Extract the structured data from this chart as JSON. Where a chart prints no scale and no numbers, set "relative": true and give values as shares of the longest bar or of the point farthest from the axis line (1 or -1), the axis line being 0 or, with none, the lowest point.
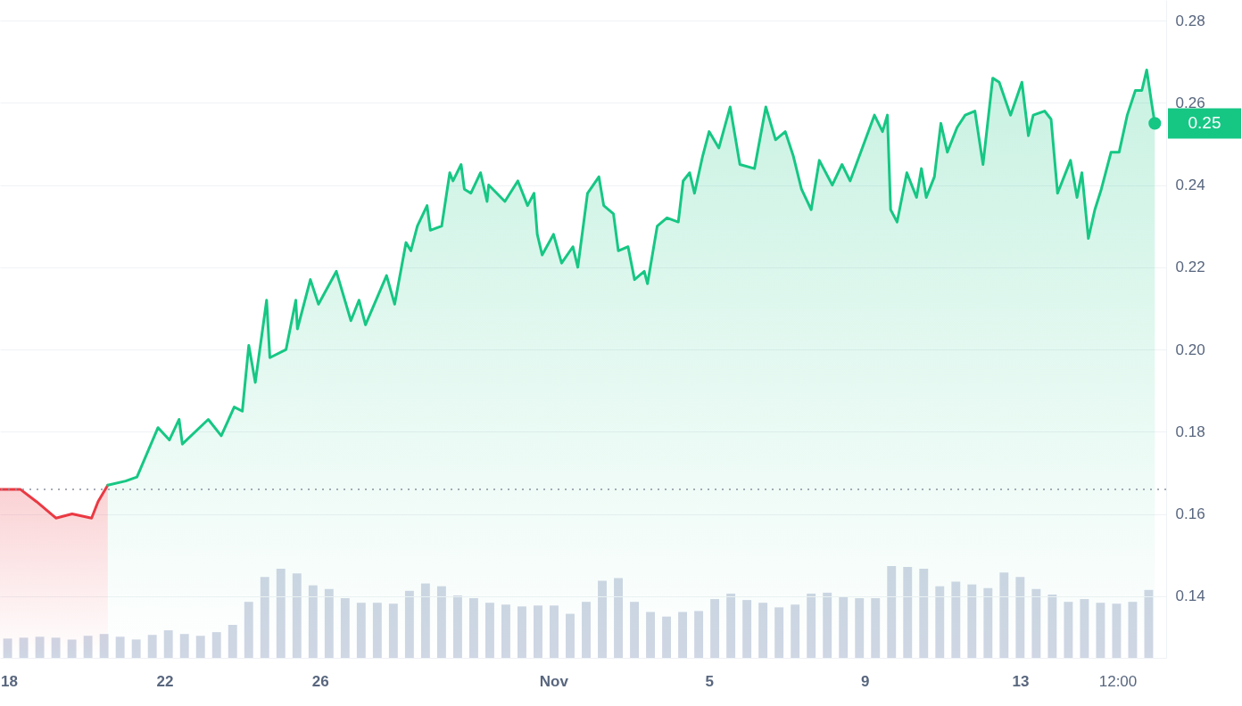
{
  "chart_data": [
    {
      "type": "area",
      "grid": "y",
      "xlim": [
        "--10-17T18:30",
        "--11-16T18:00"
      ],
      "xticks": [
        {
          "value": "--10-18",
          "label": "18"
        },
        {
          "value": "--10-22",
          "label": "22"
        },
        {
          "value": "--10-26",
          "label": "26"
        },
        {
          "value": "--11-01",
          "label": "Nov"
        },
        {
          "value": "--11-05",
          "label": "5"
        },
        {
          "value": "--11-09",
          "label": "9"
        },
        {
          "value": "--11-13",
          "label": "13"
        },
        {
          "value": "--11-15T12:00",
          "label": "12:00"
        }
      ],
      "ylim": [
        0.125,
        0.285
      ],
      "yticks": [
        0.14,
        0.16,
        0.18,
        {
          "value": 0.2,
          "label": "0.20"
        },
        0.22,
        0.24,
        0.26,
        0.28
      ],
      "ref_lines": [
        {
          "axis": "y",
          "value": 0.166,
          "color": "#8a919e",
          "line_style": "dotted"
        }
      ],
      "annotations": [
        {
          "text": "0.25",
          "x": "--11-16T11:00",
          "y": 0.255
        }
      ],
      "series": [
        {
          "type": "area",
          "color": "#ea3943",
          "x": [
            "--10-17T18:30",
            "--10-18T07:00",
            "--10-18T17:00",
            "--10-19T05:00",
            "--10-19T15:00",
            "--10-20T03:00",
            "--10-20T07:00",
            "--10-20T13:00"
          ],
          "values": [
            0.166,
            0.166,
            0.163,
            0.159,
            0.16,
            0.159,
            0.163,
            0.167
          ]
        },
        {
          "type": "area",
          "color": "#16c784",
          "x": [
            "--10-20T13:00",
            "--10-21T00:00",
            "--10-21T07:00",
            "--10-21T20:00",
            "--10-22T03:00",
            "--10-22T09:00",
            "--10-22T11:00",
            "--10-23T03:00",
            "--10-23T11:00",
            "--10-23T19:00",
            "--10-24T00:00",
            "--10-24T04:00",
            "--10-24T08:00",
            "--10-24T15:00",
            "--10-24T17:00",
            "--10-25T03:00",
            "--10-25T09:00",
            "--10-25T10:00",
            "--10-25T18:00",
            "--10-25T23:00",
            "--10-26T10:00",
            "--10-26T19:00",
            "--10-27T00:00",
            "--10-27T04:00",
            "--10-27T17:00",
            "--10-27T22:00",
            "--10-28T05:00",
            "--10-28T08:00",
            "--10-28T12:00",
            "--10-28T18:00",
            "--10-28T20:00",
            "--10-29T03:00",
            "--10-29T08:00",
            "--10-29T10:00",
            "--10-29T15:00",
            "--10-29T17:00",
            "--10-29T21:00",
            "--10-30T03:00",
            "--10-30T07:00",
            "--10-30T08:00",
            "--10-30T18:00",
            "--10-31T02:00",
            "--10-31T08:00",
            "--10-31T12:00",
            "--10-31T14:00",
            "--10-31T17:00",
            "--11-01T00:00",
            "--11-01T05:00",
            "--11-01T12:00",
            "--11-01T15:00",
            "--11-01T21:00",
            "--11-02T04:00",
            "--11-02T07:00",
            "--11-02T13:00",
            "--11-02T16:00",
            "--11-02T22:00",
            "--11-03T02:00",
            "--11-03T08:00",
            "--11-03T10:00",
            "--11-03T16:00",
            "--11-03T22:00",
            "--11-04T05:00",
            "--11-04T08:00",
            "--11-04T12:00",
            "--11-04T15:00",
            "--11-04T20:00",
            "--11-05T00:00",
            "--11-05T06:00",
            "--11-05T13:00",
            "--11-05T19:00",
            "--11-06T04:00",
            "--11-06T11:00",
            "--11-06T17:00",
            "--11-06T23:00",
            "--11-07T04:00",
            "--11-07T09:00",
            "--11-07T15:00",
            "--11-07T20:00",
            "--11-08T04:00",
            "--11-08T10:00",
            "--11-08T15:00",
            "--11-09T06:00",
            "--11-09T11:00",
            "--11-09T14:00",
            "--11-09T16:00",
            "--11-09T20:00",
            "--11-10T02:00",
            "--11-10T08:00",
            "--11-10T11:00",
            "--11-10T14:00",
            "--11-10T19:00",
            "--11-10T23:00",
            "--11-11T03:00",
            "--11-11T09:00",
            "--11-11T14:00",
            "--11-11T20:00",
            "--11-12T01:00",
            "--11-12T07:00",
            "--11-12T11:00",
            "--11-12T18:00",
            "--11-13T01:00",
            "--11-13T05:00",
            "--11-13T08:00",
            "--11-13T15:00",
            "--11-13T19:00",
            "--11-13T23:00",
            "--11-14T07:00",
            "--11-14T11:00",
            "--11-14T14:00",
            "--11-14T18:00",
            "--11-14T22:00",
            "--11-15T02:00",
            "--11-15T08:00",
            "--11-15T13:00",
            "--11-15T18:00",
            "--11-15T23:00",
            "--11-16T03:00",
            "--11-16T06:00",
            "--11-16T09:00",
            "--11-16T11:00"
          ],
          "values": [
            0.167,
            0.168,
            0.169,
            0.181,
            0.178,
            0.183,
            0.177,
            0.183,
            0.179,
            0.186,
            0.185,
            0.201,
            0.192,
            0.212,
            0.198,
            0.2,
            0.212,
            0.205,
            0.217,
            0.211,
            0.219,
            0.207,
            0.212,
            0.206,
            0.218,
            0.211,
            0.226,
            0.224,
            0.23,
            0.235,
            0.229,
            0.23,
            0.243,
            0.241,
            0.245,
            0.239,
            0.238,
            0.243,
            0.236,
            0.24,
            0.236,
            0.241,
            0.235,
            0.238,
            0.228,
            0.223,
            0.228,
            0.221,
            0.225,
            0.22,
            0.238,
            0.242,
            0.235,
            0.233,
            0.224,
            0.225,
            0.217,
            0.219,
            0.216,
            0.23,
            0.232,
            0.231,
            0.241,
            0.243,
            0.238,
            0.247,
            0.253,
            0.249,
            0.259,
            0.245,
            0.244,
            0.259,
            0.251,
            0.253,
            0.247,
            0.239,
            0.234,
            0.246,
            0.24,
            0.245,
            0.241,
            0.257,
            0.253,
            0.257,
            0.234,
            0.231,
            0.243,
            0.237,
            0.244,
            0.237,
            0.242,
            0.255,
            0.248,
            0.254,
            0.257,
            0.258,
            0.245,
            0.266,
            0.265,
            0.257,
            0.265,
            0.252,
            0.257,
            0.258,
            0.256,
            0.238,
            0.246,
            0.237,
            0.243,
            0.227,
            0.234,
            0.239,
            0.248,
            0.248,
            0.257,
            0.263,
            0.263,
            0.268,
            0.26,
            0.255
          ]
        }
      ]
    },
    {
      "type": "bar",
      "relative": true,
      "color": "#cfd6e4",
      "categories": [
        null,
        null,
        null,
        null,
        null,
        null,
        null,
        null,
        null,
        null,
        null,
        null,
        null,
        null,
        null,
        null,
        null,
        null,
        null,
        null,
        null,
        null,
        null,
        null,
        null,
        null,
        null,
        null,
        null,
        null,
        null,
        null,
        null,
        null,
        null,
        null,
        null,
        null,
        null,
        null,
        null,
        null,
        null,
        null,
        null,
        null,
        null,
        null,
        null,
        null,
        null,
        null,
        null,
        null,
        null,
        null,
        null,
        null,
        null,
        null,
        null,
        null,
        null,
        null,
        null,
        null,
        null,
        null,
        null,
        null,
        null,
        null
      ],
      "values": [
        0.21,
        0.22,
        0.23,
        0.22,
        0.2,
        0.24,
        0.26,
        0.23,
        0.2,
        0.25,
        0.3,
        0.26,
        0.24,
        0.28,
        0.36,
        0.61,
        0.88,
        0.97,
        0.92,
        0.79,
        0.75,
        0.65,
        0.6,
        0.6,
        0.59,
        0.73,
        0.81,
        0.78,
        0.68,
        0.65,
        0.6,
        0.58,
        0.56,
        0.57,
        0.57,
        0.48,
        0.61,
        0.84,
        0.87,
        0.61,
        0.5,
        0.45,
        0.5,
        0.51,
        0.64,
        0.7,
        0.63,
        0.6,
        0.55,
        0.58,
        0.7,
        0.71,
        0.66,
        0.65,
        0.65,
        1,
        0.99,
        0.97,
        0.78,
        0.83,
        0.8,
        0.76,
        0.93,
        0.88,
        0.75,
        0.69,
        0.61,
        0.64,
        0.6,
        0.59,
        0.61,
        0.74
      ]
    }
  ]
}
